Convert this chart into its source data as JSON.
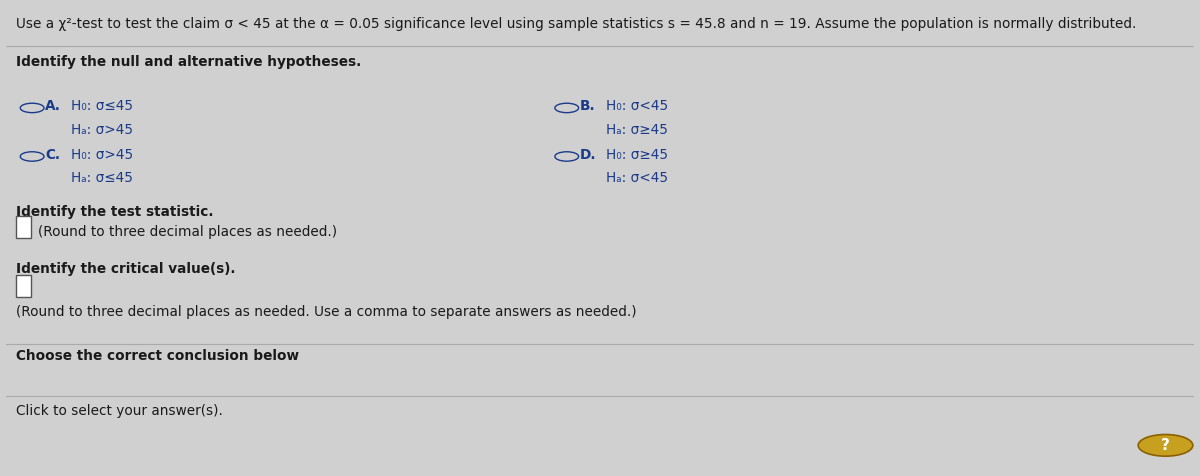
{
  "background_color": "#d0d0d0",
  "content_bg": "#e8e8e8",
  "title_text": "Use a χ²-test to test the claim σ < 45 at the α = 0.05 significance level using sample statistics s = 45.8 and n = 19. Assume the population is normally distributed.",
  "section1": "Identify the null and alternative hypotheses.",
  "optA_label": "A.",
  "optA_line1": "H₀: σ≤45",
  "optA_line2": "Hₐ: σ>45",
  "optB_label": "B.",
  "optB_line1": "H₀: σ<45",
  "optB_line2": "Hₐ: σ≥45",
  "optC_label": "C.",
  "optC_line1": "H₀: σ>45",
  "optC_line2": "Hₐ: σ≤45",
  "optD_label": "D.",
  "optD_line1": "H₀: σ≥45",
  "optD_line2": "Hₐ: σ<45",
  "section2": "Identify the test statistic.",
  "section2_note": "(Round to three decimal places as needed.)",
  "section3": "Identify the critical value(s).",
  "section3_note": "(Round to three decimal places as needed. Use a comma to separate answers as needed.)",
  "section4": "Choose the correct conclusion below",
  "section4_note": "Click to select your answer(s).",
  "text_color": "#1a1a1a",
  "option_color": "#1a3a8a",
  "circle_edge_color": "#1a3a8a",
  "qmark_bg": "#c8a020",
  "qmark_edge": "#8a6000",
  "divider_color": "#aaaaaa",
  "font_size": 9.8
}
